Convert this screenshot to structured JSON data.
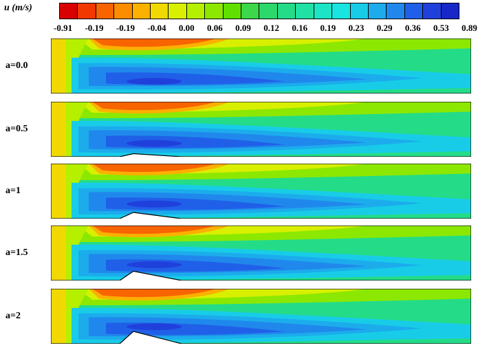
{
  "legend": {
    "title": "u (m/s)",
    "colors": [
      "#d90000",
      "#f03800",
      "#f86400",
      "#fc8c00",
      "#fcb000",
      "#f0d800",
      "#d8f000",
      "#b4f000",
      "#8ce800",
      "#5fe000",
      "#3cd84a",
      "#2cd86c",
      "#24dc88",
      "#20e0a4",
      "#1ce4c4",
      "#18e4e0",
      "#18cce8",
      "#1cacec",
      "#2088ec",
      "#2060e8",
      "#2040dc",
      "#1828c8"
    ],
    "ticks": [
      "-0.91",
      "-0.19",
      "-0.19",
      "-0.04",
      "0.00",
      "0.06",
      "0.09",
      "0.12",
      "0.16",
      "0.19",
      "0.23",
      "0.29",
      "0.36",
      "0.53",
      "0.89"
    ]
  },
  "panels": [
    {
      "label": "a=0.0",
      "a": 0.0
    },
    {
      "label": "a=0.5",
      "a": 0.5
    },
    {
      "label": "a=1",
      "a": 1
    },
    {
      "label": "a=1.5",
      "a": 1.5
    },
    {
      "label": "a=2",
      "a": 2
    }
  ]
}
